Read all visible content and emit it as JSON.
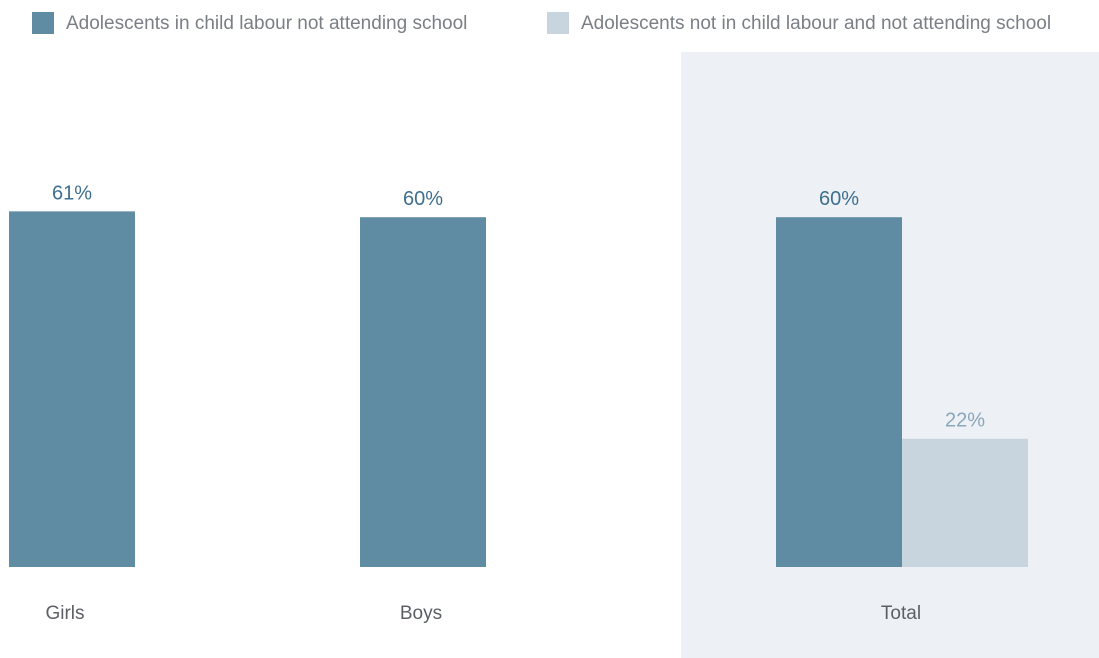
{
  "chart_data": {
    "type": "bar",
    "categories": [
      "Girls",
      "Boys",
      "Total"
    ],
    "series": [
      {
        "name": "Adolescents in child labour not attending school",
        "values": [
          61,
          60,
          60
        ],
        "labels": [
          "61%",
          "60%",
          "60%"
        ]
      },
      {
        "name": "Adolescents not in child labour and not attending school",
        "values": [
          null,
          null,
          22
        ],
        "labels": [
          null,
          null,
          "22%"
        ]
      }
    ],
    "unit": "%",
    "highlighted_category": "Total",
    "grid": false,
    "legend_position": "top",
    "ylim": [
      0,
      100
    ]
  },
  "colors": {
    "series_1": "#5f8ba3",
    "series_2": "#c8d5df",
    "series_1_label": "#3f6f8e",
    "series_2_label": "#8aa6ba",
    "highlight_panel": "#edf1f5"
  }
}
